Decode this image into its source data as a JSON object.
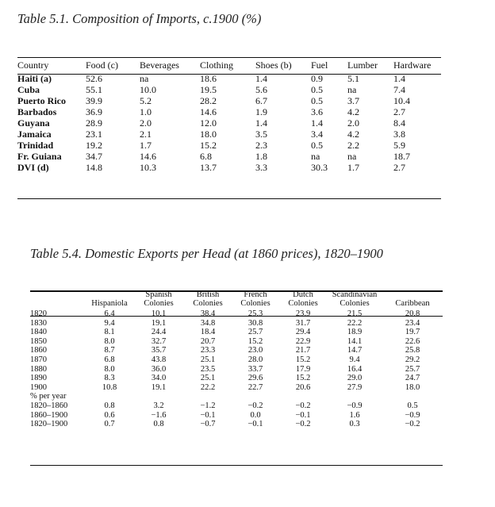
{
  "table1": {
    "caption": "Table 5.1. Composition of Imports, c.1900 (%)",
    "headers": [
      "Country",
      "Food (c)",
      "Beverages",
      "Clothing",
      "Shoes (b)",
      "Fuel",
      "Lumber",
      "Hardware"
    ],
    "rows": [
      {
        "label": "Haiti (a)",
        "cells": [
          "52.6",
          "na",
          "18.6",
          "1.4",
          "0.9",
          "5.1",
          "1.4"
        ]
      },
      {
        "label": "Cuba",
        "cells": [
          "55.1",
          "10.0",
          "19.5",
          "5.6",
          "0.5",
          "na",
          "7.4"
        ]
      },
      {
        "label": "Puerto Rico",
        "cells": [
          "39.9",
          "5.2",
          "28.2",
          "6.7",
          "0.5",
          "3.7",
          "10.4"
        ]
      },
      {
        "label": "Barbados",
        "cells": [
          "36.9",
          "1.0",
          "14.6",
          "1.9",
          "3.6",
          "4.2",
          "2.7"
        ]
      },
      {
        "label": "Guyana",
        "cells": [
          "28.9",
          "2.0",
          "12.0",
          "1.4",
          "1.4",
          "2.0",
          "8.4"
        ]
      },
      {
        "label": "Jamaica",
        "cells": [
          "23.1",
          "2.1",
          "18.0",
          "3.5",
          "3.4",
          "4.2",
          "3.8"
        ]
      },
      {
        "label": "Trinidad",
        "cells": [
          "19.2",
          "1.7",
          "15.2",
          "2.3",
          "0.5",
          "2.2",
          "5.9"
        ]
      },
      {
        "label": "Fr. Guiana",
        "cells": [
          "34.7",
          "14.6",
          "6.8",
          "1.8",
          "na",
          "na",
          "18.7"
        ]
      },
      {
        "label": "DVI (d)",
        "cells": [
          "14.8",
          "10.3",
          "13.7",
          "3.3",
          "30.3",
          "1.7",
          "2.7"
        ]
      }
    ]
  },
  "table2": {
    "caption": "Table 5.4. Domestic Exports per Head (at 1860 prices), 1820–1900",
    "headers": [
      {
        "line1": "",
        "line2": "Hispaniola"
      },
      {
        "line1": "Spanish",
        "line2": "Colonies"
      },
      {
        "line1": "British",
        "line2": "Colonies"
      },
      {
        "line1": "French",
        "line2": "Colonies"
      },
      {
        "line1": "Dutch",
        "line2": "Colonies"
      },
      {
        "line1": "Scandinavian",
        "line2": "Colonies"
      },
      {
        "line1": "",
        "line2": "Caribbean"
      }
    ],
    "rows": [
      {
        "label": "1820",
        "cells": [
          "6.4",
          "10.1",
          "38.4",
          "25.3",
          "23.9",
          "21.5",
          "20.8"
        ]
      },
      {
        "label": "1830",
        "cells": [
          "9.4",
          "19.1",
          "34.8",
          "30.8",
          "31.7",
          "22.2",
          "23.4"
        ]
      },
      {
        "label": "1840",
        "cells": [
          "8.1",
          "24.4",
          "18.4",
          "25.7",
          "29.4",
          "18.9",
          "19.7"
        ]
      },
      {
        "label": "1850",
        "cells": [
          "8.0",
          "32.7",
          "20.7",
          "15.2",
          "22.9",
          "14.1",
          "22.6"
        ]
      },
      {
        "label": "1860",
        "cells": [
          "8.7",
          "35.7",
          "23.3",
          "23.0",
          "21.7",
          "14.7",
          "25.8"
        ]
      },
      {
        "label": "1870",
        "cells": [
          "6.8",
          "43.8",
          "25.1",
          "28.0",
          "15.2",
          "9.4",
          "29.2"
        ]
      },
      {
        "label": "1880",
        "cells": [
          "8.0",
          "36.0",
          "23.5",
          "33.7",
          "17.9",
          "16.4",
          "25.7"
        ]
      },
      {
        "label": "1890",
        "cells": [
          "8.3",
          "34.0",
          "25.1",
          "29.6",
          "15.2",
          "29.0",
          "24.7"
        ]
      },
      {
        "label": "1900",
        "cells": [
          "10.8",
          "19.1",
          "22.2",
          "22.7",
          "20.6",
          "27.9",
          "18.0"
        ]
      }
    ],
    "per_year_label": "% per year",
    "growth_rows": [
      {
        "label": "1820–1860",
        "cells": [
          "0.8",
          "3.2",
          "−1.2",
          "−0.2",
          "−0.2",
          "−0.9",
          "0.5"
        ]
      },
      {
        "label": "1860–1900",
        "cells": [
          "0.6",
          "−1.6",
          "−0.1",
          "0.0",
          "−0.1",
          "1.6",
          "−0.9"
        ]
      },
      {
        "label": "1820–1900",
        "cells": [
          "0.7",
          "0.8",
          "−0.7",
          "−0.1",
          "−0.2",
          "0.3",
          "−0.2"
        ]
      }
    ]
  }
}
